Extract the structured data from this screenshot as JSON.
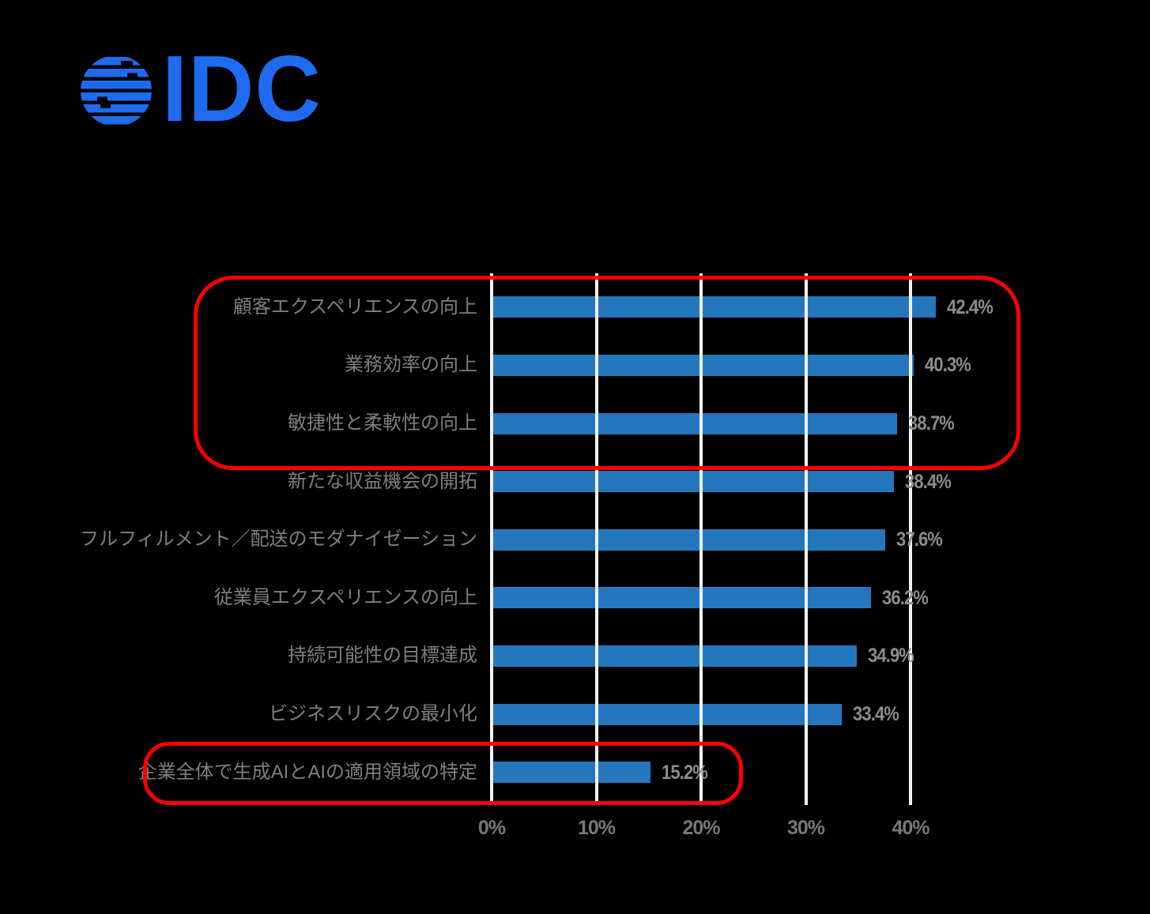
{
  "logo": {
    "name": "IDC",
    "color": "#1E6BF0"
  },
  "background_color": "#000000",
  "chart_data": {
    "type": "bar",
    "orientation": "horizontal",
    "title": "",
    "xlabel": "",
    "ylabel": "",
    "categories": [
      "顧客エクスペリエンスの向上",
      "業務効率の向上",
      "敏捷性と柔軟性の向上",
      "新たな収益機会の開拓",
      "フルフィルメント／配送のモダナイゼーション",
      "従業員エクスペリエンスの向上",
      "持続可能性の目標達成",
      "ビジネスリスクの最小化",
      "企業全体で生成AIとAIの適用領域の特定"
    ],
    "values": [
      42.4,
      40.3,
      38.7,
      38.4,
      37.6,
      36.2,
      34.9,
      33.4,
      15.2
    ],
    "value_labels": [
      "42.4%",
      "40.3%",
      "38.7%",
      "38.4%",
      "37.6%",
      "36.2%",
      "34.9%",
      "33.4%",
      "15.2%"
    ],
    "x_ticks": [
      "0%",
      "10%",
      "20%",
      "30%",
      "40%"
    ],
    "x_tick_values": [
      0,
      10,
      20,
      30,
      40
    ],
    "xlim": [
      0,
      47
    ],
    "grid": true,
    "legend": false,
    "bar_color": "#2577BD",
    "gridline_color": "#F2F2F2",
    "category_label_color": "#7F7F7F",
    "value_label_color": "#8C8C8C",
    "axis_label_color": "#787878",
    "annotations": [
      {
        "id": "top3-highlight",
        "rows": [
          0,
          1,
          2
        ],
        "color": "#FF0000",
        "note": "red rounded box around top three bars"
      },
      {
        "id": "genai-highlight",
        "rows": [
          8
        ],
        "color": "#FF0000",
        "note": "red rounded box around bottom bar"
      }
    ]
  }
}
